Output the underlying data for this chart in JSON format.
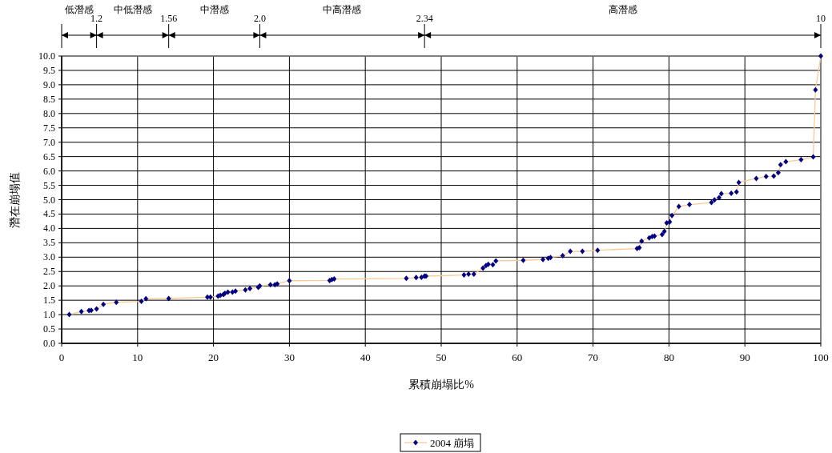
{
  "chart_data": {
    "type": "line",
    "xlabel": "累積崩塌比%",
    "ylabel": "潛在崩塌值",
    "x": [
      1.0,
      2.6,
      3.6,
      3.9,
      4.6,
      5.5,
      7.2,
      10.5,
      11.1,
      14.1,
      19.2,
      19.6,
      20.6,
      20.9,
      21.3,
      21.5,
      21.9,
      22.5,
      22.9,
      24.2,
      24.8,
      25.9,
      26.1,
      27.5,
      28.1,
      28.4,
      30.0,
      35.3,
      35.6,
      35.9,
      45.4,
      46.7,
      47.4,
      47.8,
      48.0,
      53.0,
      53.6,
      54.3,
      55.5,
      55.9,
      56.2,
      56.8,
      57.2,
      60.8,
      63.4,
      64.1,
      64.4,
      66.0,
      67.0,
      68.6,
      70.6,
      75.8,
      76.1,
      76.4,
      77.4,
      77.8,
      78.1,
      79.1,
      79.4,
      79.7,
      80.1,
      80.4,
      81.3,
      82.7,
      85.6,
      86.0,
      86.6,
      86.9,
      88.2,
      88.9,
      89.2,
      91.5,
      92.8,
      93.8,
      94.4,
      94.7,
      95.4,
      97.4,
      99.0,
      99.3,
      100.0
    ],
    "series": [
      {
        "name": "2004 崩塌",
        "color": "#000080",
        "values": [
          1.0,
          1.11,
          1.14,
          1.15,
          1.2,
          1.36,
          1.43,
          1.46,
          1.55,
          1.56,
          1.61,
          1.61,
          1.64,
          1.67,
          1.7,
          1.74,
          1.78,
          1.78,
          1.82,
          1.86,
          1.91,
          1.95,
          2.0,
          2.04,
          2.04,
          2.07,
          2.18,
          2.19,
          2.22,
          2.24,
          2.26,
          2.29,
          2.3,
          2.34,
          2.34,
          2.38,
          2.41,
          2.41,
          2.62,
          2.71,
          2.75,
          2.74,
          2.87,
          2.89,
          2.92,
          2.96,
          2.99,
          3.05,
          3.2,
          3.2,
          3.24,
          3.3,
          3.33,
          3.56,
          3.67,
          3.72,
          3.73,
          3.79,
          3.9,
          4.19,
          4.23,
          4.45,
          4.76,
          4.83,
          4.9,
          4.99,
          5.07,
          5.21,
          5.22,
          5.27,
          5.6,
          5.74,
          5.81,
          5.82,
          5.94,
          6.22,
          6.32,
          6.39,
          6.49,
          8.82,
          10.0
        ]
      }
    ],
    "xlim": [
      0,
      100
    ],
    "xticks": [
      0,
      10,
      20,
      30,
      40,
      50,
      60,
      70,
      80,
      90,
      100
    ],
    "ylim": [
      0,
      10
    ],
    "yticks": [
      {
        "value": 0,
        "label": "0.0"
      },
      {
        "value": 0.5,
        "label": "0.5"
      },
      {
        "value": 1,
        "label": "1.0"
      },
      {
        "value": 1.5,
        "label": "1.5"
      },
      {
        "value": 2,
        "label": "2.0"
      },
      {
        "value": 2.5,
        "label": "2.5"
      },
      {
        "value": 3,
        "label": "3.0"
      },
      {
        "value": 3.5,
        "label": "3.5"
      },
      {
        "value": 4,
        "label": "4.0"
      },
      {
        "value": 4.5,
        "label": "4.5"
      },
      {
        "value": 5,
        "label": "5.0"
      },
      {
        "value": 5.5,
        "label": "5.5"
      },
      {
        "value": 6,
        "label": "6.0"
      },
      {
        "value": 6.5,
        "label": "6.5"
      },
      {
        "value": 7,
        "label": "7.0"
      },
      {
        "value": 7.5,
        "label": "7.5"
      },
      {
        "value": 8,
        "label": "8.0"
      },
      {
        "value": 8.5,
        "label": "8.5"
      },
      {
        "value": 9,
        "label": "9.0"
      },
      {
        "value": 9.5,
        "label": "9.5"
      },
      {
        "value": 10,
        "label": "10.0"
      }
    ],
    "annotations": [
      "低潛感",
      "1.2",
      "中低潛感",
      "1.56",
      "中潛感",
      "2.0",
      "中高潛感",
      "2.34",
      "高潛感",
      "10"
    ],
    "grid": true,
    "marker": "diamond",
    "line_style": "solid",
    "legend": "bottom"
  }
}
